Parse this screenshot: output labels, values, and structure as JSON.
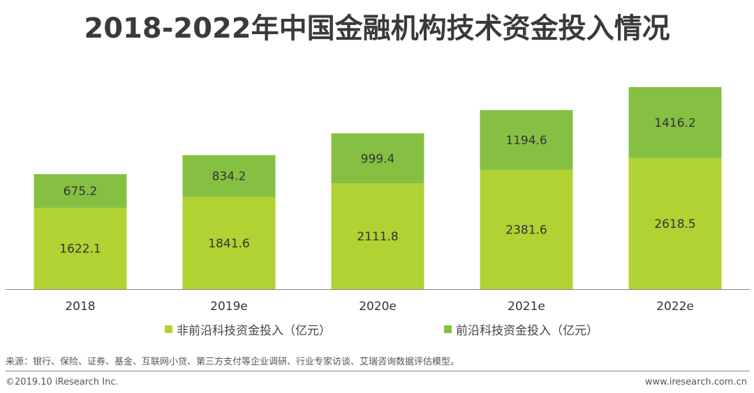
{
  "title": "2018-2022年中国金融机构技术资金投入情况",
  "chart_data": {
    "type": "bar",
    "stacked": true,
    "title": "2018-2022年中国金融机构技术资金投入情况",
    "categories": [
      "2018",
      "2019e",
      "2020e",
      "2021e",
      "2022e"
    ],
    "series": [
      {
        "name": "非前沿科技资金投入（亿元）",
        "color": "#b0d232",
        "values": [
          1622.1,
          1841.6,
          2111.8,
          2381.6,
          2618.5
        ]
      },
      {
        "name": "前沿科技资金投入（亿元）",
        "color": "#86c043",
        "values": [
          675.2,
          834.2,
          999.4,
          1194.6,
          1416.2
        ]
      }
    ],
    "ylim": [
      0,
      4034.7
    ],
    "xlabel": "",
    "ylabel": ""
  },
  "legend": {
    "item1": "非前沿科技资金投入（亿元）",
    "item2": "前沿科技资金投入（亿元）"
  },
  "footer": {
    "source": "来源：银行、保险、证券、基金、互联网小贷、第三方支付等企业调研、行业专家访谈、艾瑞咨询数据评估模型。",
    "copyright": "©2019.10 iResearch Inc.",
    "website": "www.iresearch.com.cn"
  },
  "colors": {
    "series1": "#b0d232",
    "series2": "#86c043",
    "axis": "#888888"
  }
}
